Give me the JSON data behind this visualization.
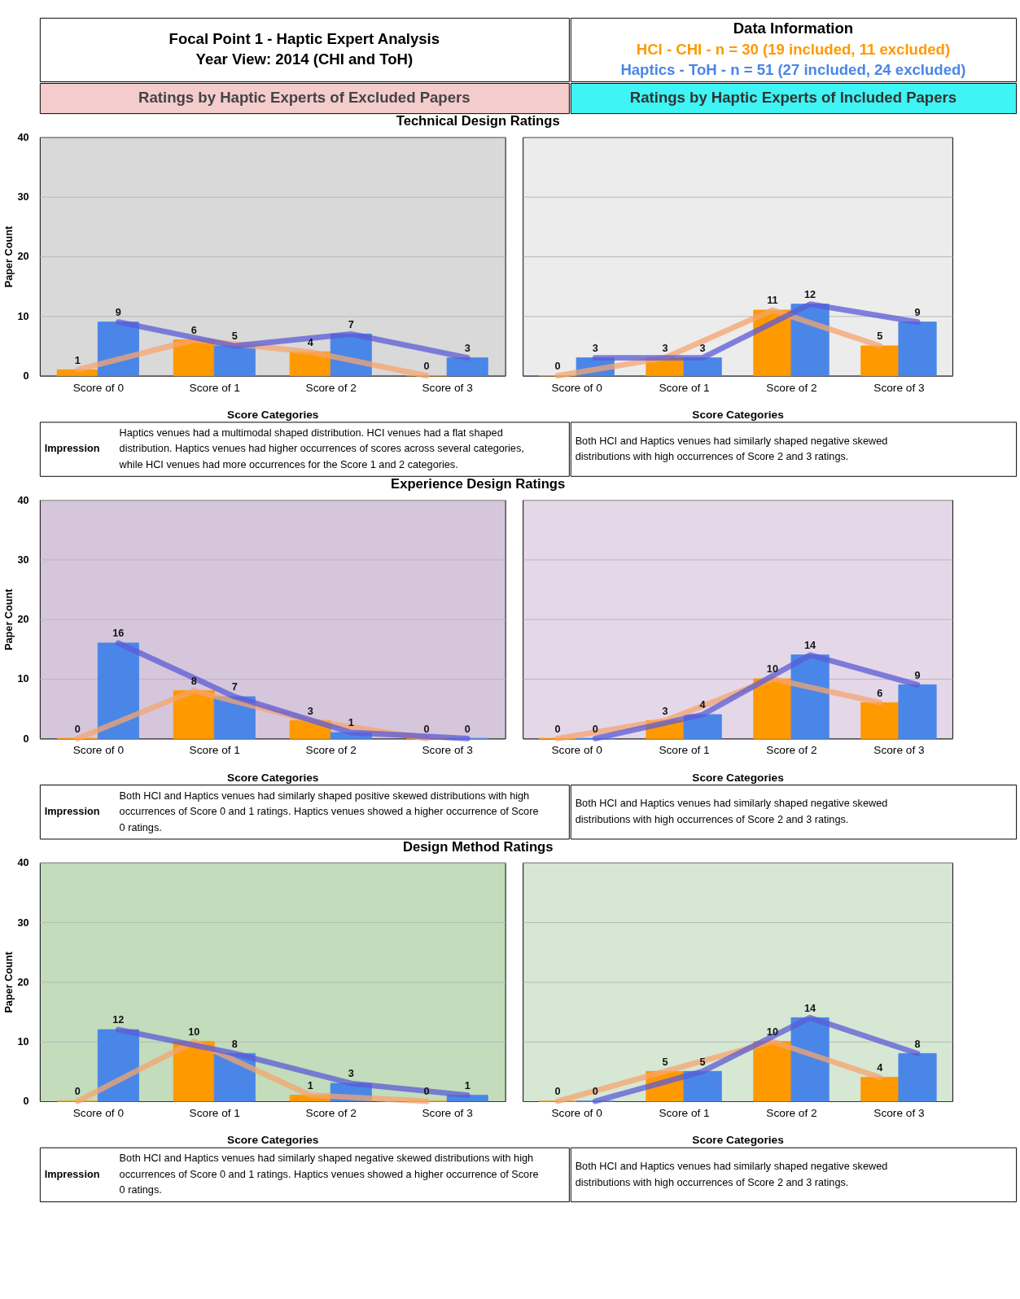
{
  "chart_data": [
    {
      "type": "other",
      "title": "Focal Point 1 - Haptic Expert Analysis",
      "subtitle": "Year View: 2014 (CHI and ToH)",
      "annotations": [
        "Data Information",
        "HCI - CHI - n = 30 (19 included, 11 excluded)",
        "Haptics - ToH - n = 51 (27 included, 24 excluded)",
        "Ratings by Haptic Experts of Excluded Papers",
        "Ratings by Haptic Experts of Included Papers"
      ]
    },
    {
      "type": "bar",
      "title": "Technical Design Ratings",
      "xlabel": "Score Categories",
      "ylabel": "Paper Count",
      "categories": [
        "Score of 0",
        "Score of 1",
        "Score of 2",
        "Score of 3"
      ],
      "ylim": [
        0,
        40
      ],
      "yticks": [
        0,
        10,
        20,
        30,
        40
      ],
      "grid": "y",
      "series": [
        {
          "color": "#ff9900",
          "values": [
            1,
            6,
            4,
            0
          ],
          "value_labels": [
            "1",
            "6",
            "4",
            "0"
          ]
        },
        {
          "color": "#4a86e8",
          "values": [
            9,
            5,
            7,
            3
          ],
          "value_labels": [
            "9",
            "5",
            "7",
            "3"
          ]
        },
        {
          "type": "line",
          "color": "#f6a46e",
          "values": [
            1,
            6,
            4,
            0
          ]
        },
        {
          "type": "line",
          "color": "#5b5bd6",
          "values": [
            9,
            5,
            7,
            3
          ]
        }
      ],
      "annotations": [
        "Impression",
        "Haptics venues had a multimodal shaped distribution. HCI venues had a flat shaped distribution. Haptics venues had higher occurrences of scores across several categories, while HCI venues had more occurrences for the Score 1 and 2 categories."
      ]
    },
    {
      "type": "bar",
      "xlabel": "Score Categories",
      "categories": [
        "Score of 0",
        "Score of 1",
        "Score of 2",
        "Score of 3"
      ],
      "ylim": [
        0,
        40
      ],
      "yticks": [
        0,
        10,
        20,
        30,
        40
      ],
      "grid": "y",
      "tick_labels": "x",
      "series": [
        {
          "color": "#ff9900",
          "values": [
            0,
            3,
            11,
            5
          ],
          "value_labels": [
            "0",
            "3",
            "11",
            "5"
          ]
        },
        {
          "color": "#4a86e8",
          "values": [
            3,
            3,
            12,
            9
          ],
          "value_labels": [
            "3",
            "3",
            "12",
            "9"
          ]
        },
        {
          "type": "line",
          "color": "#f6a46e",
          "values": [
            0,
            3,
            11,
            5
          ]
        },
        {
          "type": "line",
          "color": "#5b5bd6",
          "values": [
            3,
            3,
            12,
            9
          ]
        }
      ],
      "annotations": [
        "Both HCI and Haptics venues had similarly shaped negative skewed distributions with high occurrences of Score 2 and 3 ratings."
      ]
    },
    {
      "type": "bar",
      "title": "Experience Design Ratings",
      "xlabel": "Score Categories",
      "ylabel": "Paper Count",
      "categories": [
        "Score of 0",
        "Score of 1",
        "Score of 2",
        "Score of 3"
      ],
      "ylim": [
        0,
        40
      ],
      "yticks": [
        0,
        10,
        20,
        30,
        40
      ],
      "grid": "y",
      "series": [
        {
          "color": "#ff9900",
          "values": [
            0,
            8,
            3,
            0
          ],
          "value_labels": [
            "0",
            "8",
            "3",
            "0"
          ]
        },
        {
          "color": "#4a86e8",
          "values": [
            16,
            7,
            1,
            0
          ],
          "value_labels": [
            "16",
            "7",
            "1",
            "0"
          ]
        },
        {
          "type": "line",
          "color": "#f6a46e",
          "values": [
            0,
            8,
            3,
            0
          ]
        },
        {
          "type": "line",
          "color": "#5b5bd6",
          "values": [
            16,
            7,
            1,
            0
          ]
        }
      ],
      "annotations": [
        "Impression",
        "Both HCI and Haptics venues had similarly shaped positive skewed distributions with high occurrences of Score 0 and 1 ratings. Haptics venues showed a higher occurrence of Score 0 ratings."
      ]
    },
    {
      "type": "bar",
      "xlabel": "Score Categories",
      "categories": [
        "Score of 0",
        "Score of 1",
        "Score of 2",
        "Score of 3"
      ],
      "ylim": [
        0,
        40
      ],
      "yticks": [
        0,
        10,
        20,
        30,
        40
      ],
      "grid": "y",
      "tick_labels": "x",
      "series": [
        {
          "color": "#ff9900",
          "values": [
            0,
            3,
            10,
            6
          ],
          "value_labels": [
            "0",
            "3",
            "10",
            "6"
          ]
        },
        {
          "color": "#4a86e8",
          "values": [
            0,
            4,
            14,
            9
          ],
          "value_labels": [
            "0",
            "4",
            "14",
            "9"
          ]
        },
        {
          "type": "line",
          "color": "#f6a46e",
          "values": [
            0,
            3,
            10,
            6
          ]
        },
        {
          "type": "line",
          "color": "#5b5bd6",
          "values": [
            0,
            4,
            14,
            9
          ]
        }
      ],
      "annotations": [
        "Both HCI and Haptics venues had similarly shaped negative skewed distributions with high occurrences of Score 2 and 3 ratings."
      ]
    },
    {
      "type": "bar",
      "title": "Design Method Ratings",
      "xlabel": "Score Categories",
      "ylabel": "Paper Count",
      "categories": [
        "Score of 0",
        "Score of 1",
        "Score of 2",
        "Score of 3"
      ],
      "ylim": [
        0,
        40
      ],
      "yticks": [
        0,
        10,
        20,
        30,
        40
      ],
      "grid": "y",
      "series": [
        {
          "color": "#ff9900",
          "values": [
            0,
            10,
            1,
            0
          ],
          "value_labels": [
            "0",
            "10",
            "1",
            "0"
          ]
        },
        {
          "color": "#4a86e8",
          "values": [
            12,
            8,
            3,
            1
          ],
          "value_labels": [
            "12",
            "8",
            "3",
            "1"
          ]
        },
        {
          "type": "line",
          "color": "#f6a46e",
          "values": [
            0,
            10,
            1,
            0
          ]
        },
        {
          "type": "line",
          "color": "#5b5bd6",
          "values": [
            12,
            8,
            3,
            1
          ]
        }
      ],
      "annotations": [
        "Impression",
        "Both HCI and Haptics venues had similarly shaped negative skewed distributions with high occurrences of Score 0 and 1 ratings. Haptics venues showed a higher occurrence of Score 0 ratings."
      ]
    },
    {
      "type": "bar",
      "xlabel": "Score Categories",
      "categories": [
        "Score of 0",
        "Score of 1",
        "Score of 2",
        "Score of 3"
      ],
      "ylim": [
        0,
        40
      ],
      "yticks": [
        0,
        10,
        20,
        30,
        40
      ],
      "grid": "y",
      "tick_labels": "x",
      "series": [
        {
          "color": "#ff9900",
          "values": [
            0,
            5,
            10,
            4
          ],
          "value_labels": [
            "0",
            "5",
            "10",
            "4"
          ]
        },
        {
          "color": "#4a86e8",
          "values": [
            0,
            5,
            14,
            8
          ],
          "value_labels": [
            "0",
            "5",
            "14",
            "8"
          ]
        },
        {
          "type": "line",
          "color": "#f6a46e",
          "values": [
            0,
            5,
            10,
            4
          ]
        },
        {
          "type": "line",
          "color": "#5b5bd6",
          "values": [
            0,
            5,
            14,
            8
          ]
        }
      ],
      "annotations": [
        "Both HCI and Haptics venues had similarly shaped negative skewed distributions with high occurrences of Score 2 and 3 ratings."
      ]
    }
  ]
}
